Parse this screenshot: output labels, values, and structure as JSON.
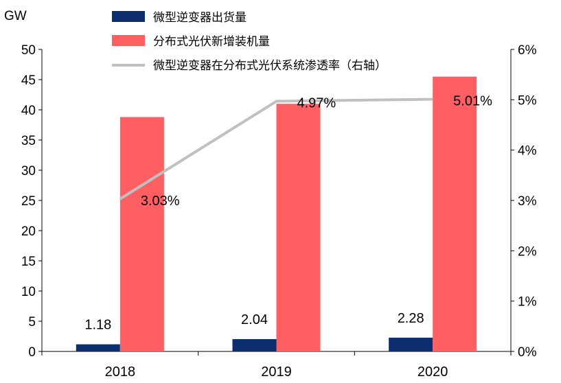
{
  "chart_data": {
    "type": "bar",
    "categories": [
      "2018",
      "2019",
      "2020"
    ],
    "y_left": {
      "unit": "GW",
      "min": 0,
      "max": 50,
      "step": 5
    },
    "y_right": {
      "min": 0,
      "max": 6,
      "step": 1,
      "tick_suffix": "%"
    },
    "series": [
      {
        "name": "微型逆变器出货量",
        "type": "bar",
        "axis": "left",
        "color": "#0c2d6e",
        "values": [
          1.18,
          2.04,
          2.28
        ],
        "labels": [
          "1.18",
          "2.04",
          "2.28"
        ]
      },
      {
        "name": "分布式光伏新增装机量",
        "type": "bar",
        "axis": "left",
        "color": "#ff5f63",
        "values": [
          38.8,
          41.0,
          45.5
        ]
      },
      {
        "name": "微型逆变器在分布式光伏系统渗透率（右轴）",
        "type": "line",
        "axis": "right",
        "color": "#c0c0c0",
        "values": [
          3.03,
          4.97,
          5.01
        ],
        "labels": [
          "3.03%",
          "4.97%",
          "5.01%"
        ]
      }
    ],
    "grid": false,
    "legend": "top-center"
  }
}
